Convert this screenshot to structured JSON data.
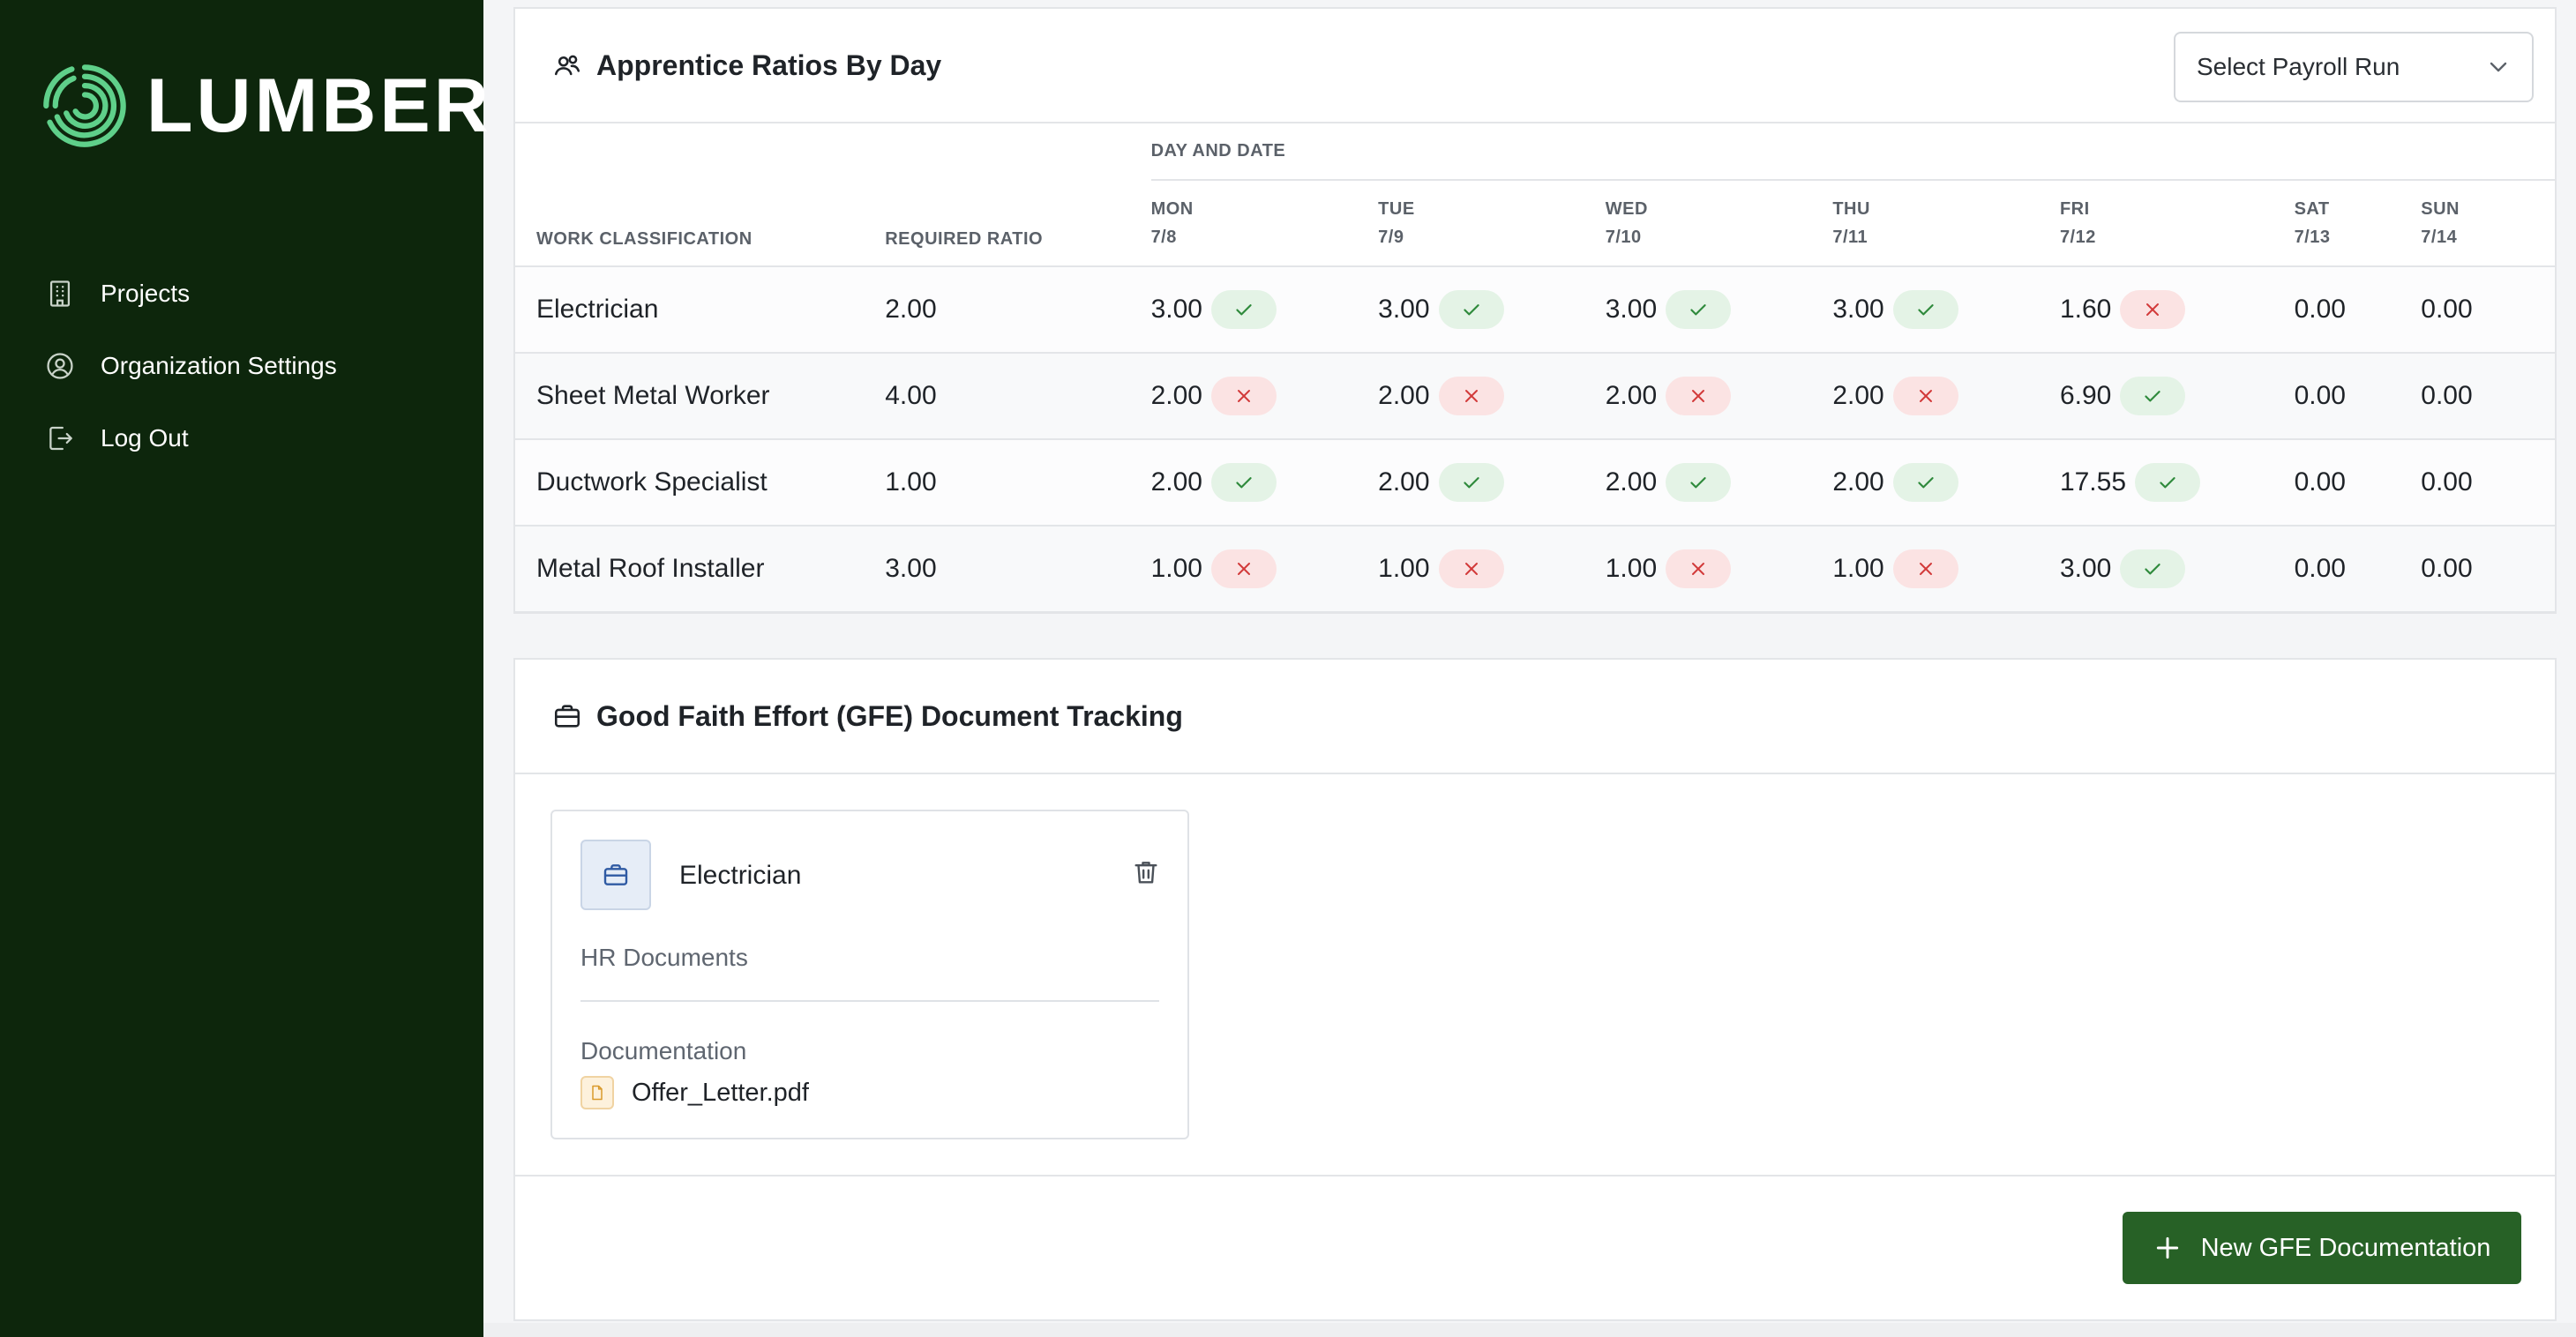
{
  "brand": {
    "name": "LUMBER",
    "color": "#0d260c",
    "logo_color": "#5fd08a"
  },
  "sidebar": {
    "items": [
      {
        "label": "Projects",
        "icon": "building-icon"
      },
      {
        "label": "Organization Settings",
        "icon": "user-circle-icon"
      },
      {
        "label": "Log Out",
        "icon": "logout-icon"
      }
    ]
  },
  "ratios": {
    "title": "Apprentice Ratios By Day",
    "icon": "users-icon",
    "select_placeholder": "Select Payroll Run",
    "columns": {
      "work_classification": "WORK CLASSIFICATION",
      "required_ratio": "REQUIRED RATIO",
      "day_group": "DAY AND DATE"
    },
    "days": [
      {
        "day": "MON",
        "date": "7/8"
      },
      {
        "day": "TUE",
        "date": "7/9"
      },
      {
        "day": "WED",
        "date": "7/10"
      },
      {
        "day": "THU",
        "date": "7/11"
      },
      {
        "day": "FRI",
        "date": "7/12"
      },
      {
        "day": "SAT",
        "date": "7/13"
      },
      {
        "day": "SUN",
        "date": "7/14"
      }
    ],
    "rows": [
      {
        "classification": "Electrician",
        "required": "2.00",
        "values": [
          "3.00",
          "3.00",
          "3.00",
          "3.00",
          "1.60",
          "0.00",
          "0.00"
        ],
        "status": [
          "ok",
          "ok",
          "ok",
          "ok",
          "bad",
          "none",
          "none"
        ]
      },
      {
        "classification": "Sheet Metal Worker",
        "required": "4.00",
        "values": [
          "2.00",
          "2.00",
          "2.00",
          "2.00",
          "6.90",
          "0.00",
          "0.00"
        ],
        "status": [
          "bad",
          "bad",
          "bad",
          "bad",
          "ok",
          "none",
          "none"
        ]
      },
      {
        "classification": "Ductwork Specialist",
        "required": "1.00",
        "values": [
          "2.00",
          "2.00",
          "2.00",
          "2.00",
          "17.55",
          "0.00",
          "0.00"
        ],
        "status": [
          "ok",
          "ok",
          "ok",
          "ok",
          "ok",
          "none",
          "none"
        ]
      },
      {
        "classification": "Metal Roof Installer",
        "required": "3.00",
        "values": [
          "1.00",
          "1.00",
          "1.00",
          "1.00",
          "3.00",
          "0.00",
          "0.00"
        ],
        "status": [
          "bad",
          "bad",
          "bad",
          "bad",
          "ok",
          "none",
          "none"
        ]
      }
    ],
    "status_colors": {
      "ok": "#2f8a3c",
      "bad": "#d23a3a"
    }
  },
  "gfe": {
    "title": "Good Faith Effort (GFE) Document Tracking",
    "icon": "briefcase-icon",
    "card": {
      "title": "Electrician",
      "subtitle": "HR Documents",
      "doc_label": "Documentation",
      "file_name": "Offer_Letter.pdf"
    },
    "new_button": "New GFE Documentation",
    "button_color": "#276126"
  }
}
